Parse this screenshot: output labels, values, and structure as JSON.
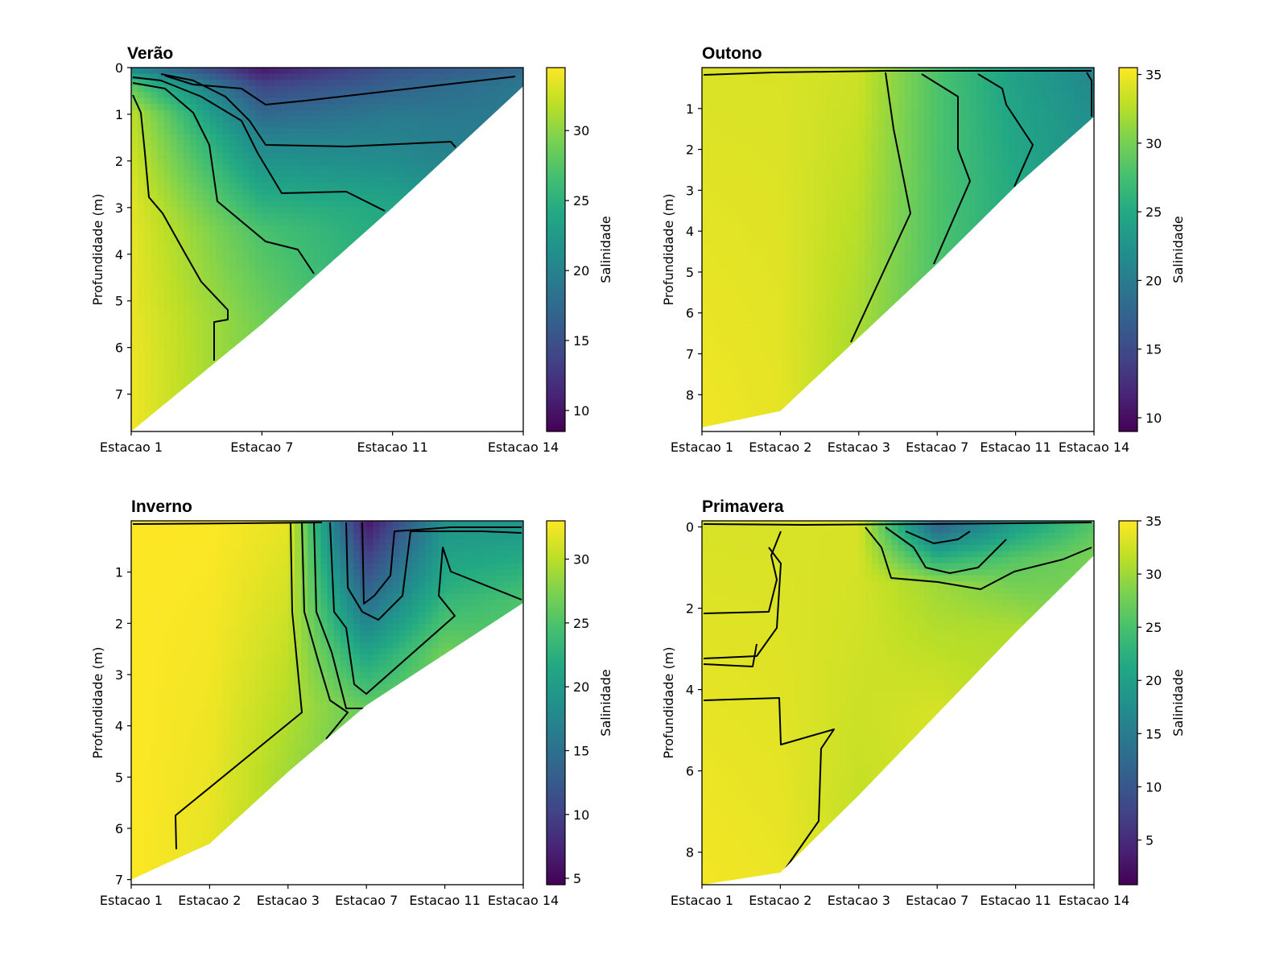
{
  "chart_data": [
    {
      "type": "heatmap",
      "title": "Verão",
      "ylabel": "Profundidade (m)",
      "xlabel": "",
      "categories": [
        "Estacao 1",
        "Estacao 7",
        "Estacao 11",
        "Estacao 14"
      ],
      "ylim": [
        7.8,
        0
      ],
      "yticks": [
        0,
        1,
        2,
        3,
        4,
        5,
        6,
        7
      ],
      "max_depth": [
        7.8,
        5.5,
        3.0,
        0.4
      ],
      "colorbar": {
        "label": "Salinidade",
        "range": [
          8.5,
          34.5
        ],
        "ticks": [
          10,
          15,
          20,
          25,
          30
        ]
      },
      "profiles": [
        {
          "x": "Estacao 1",
          "salinity": [
            [
              0,
              20
            ],
            [
              0.4,
              28
            ],
            [
              1.0,
              32
            ],
            [
              3,
              33.5
            ],
            [
              7.8,
              34
            ]
          ]
        },
        {
          "x": "Estacao 7",
          "salinity": [
            [
              0,
              10
            ],
            [
              0.4,
              14
            ],
            [
              1.5,
              20
            ],
            [
              3.5,
              27
            ],
            [
              5.5,
              29
            ]
          ]
        },
        {
          "x": "Estacao 11",
          "salinity": [
            [
              0,
              15
            ],
            [
              1.0,
              19
            ],
            [
              2.0,
              21
            ],
            [
              3.0,
              24
            ]
          ]
        },
        {
          "x": "Estacao 14",
          "salinity": [
            [
              0,
              17
            ],
            [
              0.4,
              19
            ]
          ]
        }
      ],
      "grid": false,
      "legend": "none"
    },
    {
      "type": "heatmap",
      "title": "Outono",
      "ylabel": "Profundidade (m)",
      "xlabel": "",
      "categories": [
        "Estacao 1",
        "Estacao 2",
        "Estacao 3",
        "Estacao 7",
        "Estacao 11",
        "Estacao 14"
      ],
      "ylim": [
        8.9,
        0
      ],
      "yticks": [
        1,
        2,
        3,
        4,
        5,
        6,
        7,
        8
      ],
      "max_depth": [
        8.8,
        8.4,
        6.6,
        4.8,
        2.9,
        1.2
      ],
      "colorbar": {
        "label": "Salinidade",
        "range": [
          9,
          35.5
        ],
        "ticks": [
          10,
          15,
          20,
          25,
          30,
          35
        ]
      },
      "profiles": [
        {
          "x": "Estacao 1",
          "salinity": [
            [
              0,
              34
            ],
            [
              8.8,
              35
            ]
          ]
        },
        {
          "x": "Estacao 2",
          "salinity": [
            [
              0,
              34
            ],
            [
              8.4,
              34.5
            ]
          ]
        },
        {
          "x": "Estacao 3",
          "salinity": [
            [
              0,
              33.5
            ],
            [
              6.6,
              32
            ]
          ]
        },
        {
          "x": "Estacao 7",
          "salinity": [
            [
              0,
              28
            ],
            [
              4.8,
              28
            ]
          ]
        },
        {
          "x": "Estacao 11",
          "salinity": [
            [
              0,
              24
            ],
            [
              2.9,
              25
            ]
          ]
        },
        {
          "x": "Estacao 14",
          "salinity": [
            [
              0,
              21
            ],
            [
              1.2,
              22
            ]
          ]
        }
      ],
      "grid": false,
      "legend": "none"
    },
    {
      "type": "heatmap",
      "title": "Inverno",
      "ylabel": "Profundidade (m)",
      "xlabel": "",
      "categories": [
        "Estacao 1",
        "Estacao 2",
        "Estacao 3",
        "Estacao 7",
        "Estacao 11",
        "Estacao 14"
      ],
      "ylim": [
        7.1,
        0
      ],
      "yticks": [
        1,
        2,
        3,
        4,
        5,
        6,
        7
      ],
      "max_depth": [
        7.0,
        6.3,
        4.9,
        3.6,
        2.6,
        1.6
      ],
      "colorbar": {
        "label": "Salinidade",
        "range": [
          4.5,
          33
        ],
        "ticks": [
          5,
          10,
          15,
          20,
          25,
          30
        ]
      },
      "profiles": [
        {
          "x": "Estacao 1",
          "salinity": [
            [
              0,
              33
            ],
            [
              7.0,
              33
            ]
          ]
        },
        {
          "x": "Estacao 2",
          "salinity": [
            [
              0,
              33
            ],
            [
              6.3,
              32
            ]
          ]
        },
        {
          "x": "Estacao 3",
          "salinity": [
            [
              0,
              32
            ],
            [
              4.9,
              29
            ]
          ]
        },
        {
          "x": "Estacao 7",
          "salinity": [
            [
              0,
              6
            ],
            [
              1.8,
              16
            ],
            [
              2.6,
              21
            ],
            [
              3.6,
              26
            ]
          ]
        },
        {
          "x": "Estacao 11",
          "salinity": [
            [
              0,
              19
            ],
            [
              1.2,
              22
            ],
            [
              2.6,
              27
            ]
          ]
        },
        {
          "x": "Estacao 14",
          "salinity": [
            [
              0,
              19
            ],
            [
              1.6,
              25
            ]
          ]
        }
      ],
      "grid": false,
      "legend": "none"
    },
    {
      "type": "heatmap",
      "title": "Primavera",
      "ylabel": "Profundidade (m)",
      "xlabel": "",
      "categories": [
        "Estacao 1",
        "Estacao 2",
        "Estacao 3",
        "Estacao 7",
        "Estacao 11",
        "Estacao 14"
      ],
      "ylim": [
        8.8,
        -0.15
      ],
      "yticks": [
        0,
        2,
        4,
        6,
        8
      ],
      "max_depth": [
        8.8,
        8.5,
        6.6,
        4.6,
        2.6,
        0.7
      ],
      "colorbar": {
        "label": "Salinidade",
        "range": [
          0.8,
          35
        ],
        "ticks": [
          5,
          10,
          15,
          20,
          25,
          30,
          35
        ]
      },
      "profiles": [
        {
          "x": "Estacao 1",
          "salinity": [
            [
              0,
              33
            ],
            [
              8.8,
              34.5
            ]
          ]
        },
        {
          "x": "Estacao 2",
          "salinity": [
            [
              0,
              33
            ],
            [
              8.5,
              34
            ]
          ]
        },
        {
          "x": "Estacao 3",
          "salinity": [
            [
              0,
              33
            ],
            [
              6.6,
              32
            ]
          ]
        },
        {
          "x": "Estacao 7",
          "salinity": [
            [
              0,
              12
            ],
            [
              0.6,
              20
            ],
            [
              1.4,
              30
            ],
            [
              4.6,
              33
            ]
          ]
        },
        {
          "x": "Estacao 11",
          "salinity": [
            [
              0,
              20
            ],
            [
              0.8,
              26
            ],
            [
              2.6,
              31
            ]
          ]
        },
        {
          "x": "Estacao 14",
          "salinity": [
            [
              0,
              26
            ],
            [
              0.7,
              28
            ]
          ]
        }
      ],
      "grid": false,
      "legend": "none"
    }
  ]
}
